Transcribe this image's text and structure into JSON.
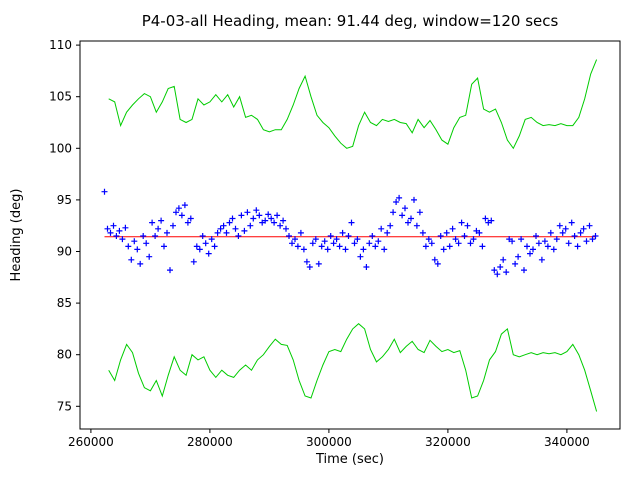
{
  "chart_data": {
    "type": "scatter",
    "title": "P4-03-all Heading, mean: 91.44 deg, window=120 secs",
    "xlabel": "Time (sec)",
    "ylabel": "Heading (deg)",
    "xlim": [
      258175,
      348925
    ],
    "ylim": [
      72.8,
      110.4
    ],
    "xticks": [
      260000,
      280000,
      300000,
      320000,
      340000
    ],
    "yticks": [
      75,
      80,
      85,
      90,
      95,
      100,
      105,
      110
    ],
    "grid": false,
    "legend": false,
    "colors": {
      "scatter": "#0000ff",
      "envelope": "#00cc00",
      "mean": "#ff0000"
    },
    "mean_line": {
      "y": 91.44,
      "x_start": 262300,
      "x_end": 344800,
      "color": "#ff0000"
    },
    "scatter": {
      "name": "heading-samples",
      "marker": "+",
      "color": "#0000ff",
      "x_start": 262300,
      "x_step": 500,
      "y": [
        95.8,
        92.2,
        91.8,
        92.5,
        91.5,
        92.0,
        91.2,
        92.3,
        90.5,
        89.2,
        91.0,
        90.2,
        88.8,
        91.5,
        90.8,
        89.5,
        92.8,
        91.5,
        92.2,
        93.0,
        90.5,
        91.8,
        88.2,
        92.5,
        93.8,
        94.2,
        93.5,
        94.5,
        92.8,
        93.2,
        89.0,
        90.5,
        90.2,
        91.5,
        90.8,
        89.8,
        91.2,
        90.5,
        91.8,
        92.2,
        92.5,
        91.8,
        92.8,
        93.2,
        92.2,
        91.5,
        93.5,
        92.0,
        93.8,
        92.5,
        93.2,
        94.0,
        93.5,
        92.8,
        93.0,
        93.6,
        93.2,
        92.8,
        93.5,
        92.5,
        93.0,
        92.2,
        91.5,
        90.8,
        91.2,
        90.5,
        91.8,
        90.2,
        89.0,
        88.5,
        90.8,
        91.2,
        88.8,
        90.5,
        91.0,
        90.2,
        91.5,
        90.8,
        91.2,
        90.5,
        91.8,
        90.2,
        91.5,
        92.8,
        90.8,
        91.2,
        89.5,
        90.2,
        88.5,
        90.8,
        91.5,
        90.5,
        91.0,
        92.2,
        90.2,
        91.8,
        92.5,
        93.8,
        94.8,
        95.2,
        93.5,
        94.2,
        92.8,
        93.2,
        95.0,
        92.5,
        93.8,
        91.8,
        90.5,
        91.2,
        90.8,
        89.2,
        88.8,
        91.5,
        90.2,
        91.8,
        90.5,
        92.2,
        91.2,
        90.8,
        92.8,
        91.5,
        92.5,
        90.8,
        91.2,
        92.0,
        91.8,
        90.5,
        93.2,
        92.8,
        93.0,
        88.2,
        87.8,
        88.5,
        89.2,
        88.0,
        91.2,
        91.0,
        88.8,
        89.5,
        91.2,
        88.2,
        90.5,
        89.8,
        90.2,
        91.5,
        90.8,
        89.2,
        91.0,
        90.5,
        91.8,
        90.2,
        91.2,
        92.5,
        91.8,
        92.2,
        90.8,
        92.8,
        91.5,
        90.5,
        91.8,
        92.2,
        91.0,
        92.5,
        91.2,
        91.5
      ]
    },
    "envelopes": [
      {
        "name": "upper-envelope-line",
        "color": "#00cc00",
        "x_start": 263000,
        "x_step": 1000,
        "y": [
          104.8,
          104.5,
          102.2,
          103.5,
          104.2,
          104.8,
          105.3,
          105.0,
          103.5,
          104.5,
          105.8,
          106.0,
          102.8,
          102.5,
          102.8,
          104.8,
          104.2,
          104.5,
          105.2,
          104.5,
          105.2,
          104.0,
          105.0,
          103.0,
          103.2,
          102.8,
          101.8,
          101.6,
          101.8,
          101.8,
          102.8,
          104.2,
          105.8,
          107.0,
          105.0,
          103.2,
          102.5,
          102.0,
          101.2,
          100.5,
          100.0,
          100.2,
          102.2,
          103.5,
          102.5,
          102.2,
          102.8,
          102.6,
          102.8,
          102.5,
          102.4,
          101.5,
          102.8,
          102.0,
          102.7,
          101.8,
          100.8,
          100.4,
          102.0,
          103.0,
          103.2,
          106.2,
          106.8,
          103.8,
          103.5,
          103.8,
          102.5,
          100.8,
          100.0,
          101.2,
          102.8,
          103.0,
          102.5,
          102.2,
          102.3,
          102.2,
          102.4,
          102.2,
          102.2,
          103.0,
          104.8,
          107.2,
          108.6
        ]
      },
      {
        "name": "lower-envelope-line",
        "color": "#00cc00",
        "x_start": 263000,
        "x_step": 1000,
        "y": [
          78.5,
          77.5,
          79.5,
          81.0,
          80.2,
          78.2,
          76.8,
          76.5,
          77.5,
          76.0,
          78.0,
          79.8,
          78.5,
          78.0,
          80.0,
          79.5,
          79.8,
          78.5,
          77.8,
          78.5,
          78.0,
          77.8,
          78.5,
          79.0,
          78.5,
          79.5,
          80.0,
          80.8,
          81.5,
          81.0,
          80.9,
          79.5,
          77.5,
          76.0,
          75.8,
          77.5,
          79.0,
          80.3,
          80.5,
          80.3,
          81.5,
          82.5,
          83.0,
          82.5,
          80.5,
          79.3,
          79.8,
          80.5,
          81.5,
          80.2,
          80.8,
          81.3,
          80.5,
          80.2,
          81.4,
          80.8,
          80.3,
          80.5,
          80.2,
          80.4,
          78.5,
          75.8,
          76.0,
          77.5,
          79.5,
          80.3,
          82.0,
          82.5,
          80.0,
          79.8,
          80.0,
          80.2,
          80.0,
          80.2,
          80.1,
          80.2,
          80.0,
          80.3,
          81.0,
          80.0,
          78.5,
          76.5,
          74.5
        ]
      }
    ]
  }
}
